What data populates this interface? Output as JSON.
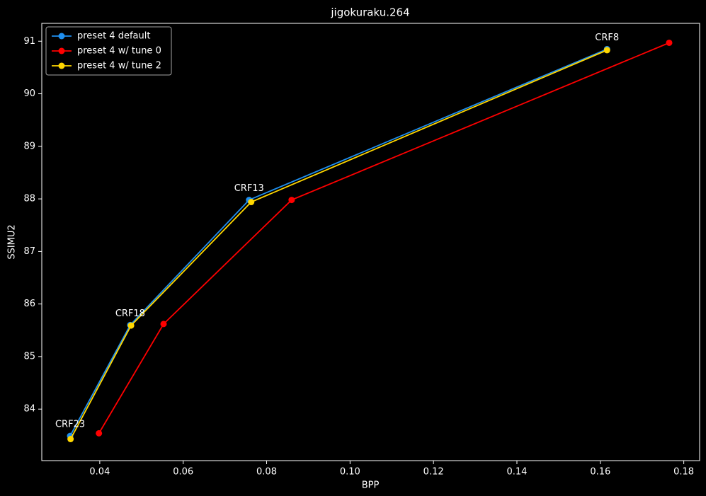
{
  "chart_data": {
    "type": "line",
    "title": "jigokuraku.264",
    "x_label": "BPP",
    "y_label": "SSIMU2",
    "series": [
      {
        "name": "preset 4 default",
        "color": "#1f8fef",
        "x": [
          0.0329,
          0.0473,
          0.0758,
          0.1616
        ],
        "values": [
          83.49,
          85.6,
          87.98,
          90.85
        ]
      },
      {
        "name": "preset 4 w/ tune 0",
        "color": "#ff0000",
        "x": [
          0.0398,
          0.0553,
          0.086,
          0.1765
        ],
        "values": [
          83.54,
          85.62,
          87.98,
          90.97
        ]
      },
      {
        "name": "preset 4 w/ tune 2",
        "color": "#ffd700",
        "x": [
          0.033,
          0.0475,
          0.0763,
          0.1616
        ],
        "values": [
          83.43,
          85.59,
          87.94,
          90.83
        ]
      }
    ],
    "annotations": [
      "CRF23",
      "CRF18",
      "CRF13",
      "CRF8"
    ],
    "xlim": [
      0.0261,
      0.1838
    ],
    "ylim": [
      83.02,
      91.34
    ],
    "xticks": [
      0.04,
      0.06,
      0.08,
      {
        "value": 0.1,
        "label": "0.10"
      },
      0.12,
      0.14,
      0.16,
      0.18
    ],
    "yticks": [
      84,
      85,
      86,
      87,
      88,
      89,
      90,
      91
    ],
    "grid": false,
    "legend": "upper left"
  }
}
